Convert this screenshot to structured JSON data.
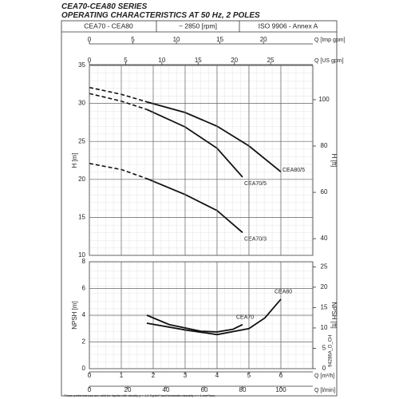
{
  "header": {
    "title_line1": "CEA70-CEA80  SERIES",
    "title_line2": "OPERATING CHARACTERISTICS AT 50 Hz, 2 POLES",
    "cells": [
      "CEA70 - CEA80",
      "~ 2850 [rpm]",
      "ISO 9906 - Annex A"
    ]
  },
  "chart_data": [
    {
      "type": "line",
      "xlim": [
        0,
        7
      ],
      "ylabel": "H [m]",
      "ylim": [
        10,
        35
      ],
      "yticks": [
        10,
        15,
        20,
        25,
        30,
        35
      ],
      "y2label": "H [ft]",
      "y2lim": [
        32.8,
        114.8
      ],
      "y2ticks": [
        40,
        60,
        80,
        100
      ],
      "grid": true,
      "top_axes": [
        {
          "label": "Q [Imp gpm]",
          "xlim": [
            0,
            25.67
          ],
          "xticks": [
            0,
            5,
            10,
            15,
            20
          ]
        },
        {
          "label": "Q [US gpm]",
          "xlim": [
            0,
            30.82
          ],
          "xticks": [
            0,
            5,
            10,
            15,
            20,
            25
          ]
        }
      ],
      "series": [
        {
          "name": "CEA80/5",
          "color": "#111111",
          "x": [
            1.8,
            3,
            4,
            5,
            6
          ],
          "values": [
            30.2,
            28.8,
            27,
            24.4,
            21
          ],
          "dashed_x": [
            0,
            1,
            1.8
          ],
          "dashed_values": [
            32.1,
            31.2,
            30.2
          ]
        },
        {
          "name": "CEA70/5",
          "color": "#111111",
          "x": [
            1.8,
            3,
            4,
            4.8
          ],
          "values": [
            29.2,
            26.9,
            24.1,
            20.3
          ],
          "dashed_x": [
            0,
            1,
            1.8
          ],
          "dashed_values": [
            31.3,
            30.3,
            29.2
          ]
        },
        {
          "name": "CEA70/3",
          "color": "#111111",
          "x": [
            1.8,
            3,
            4,
            4.8
          ],
          "values": [
            20.1,
            18,
            15.9,
            13
          ],
          "dashed_x": [
            0,
            1,
            1.8
          ],
          "dashed_values": [
            22.1,
            21.3,
            20.1
          ]
        }
      ]
    },
    {
      "type": "line",
      "xlim": [
        0,
        7
      ],
      "ylabel": "NPSH [m]",
      "ylim": [
        0,
        8
      ],
      "yticks": [
        0,
        2,
        4,
        6,
        8
      ],
      "y2label": "NPSH [ft]",
      "y2lim": [
        0,
        26.25
      ],
      "y2ticks": [
        0,
        5,
        10,
        15,
        20,
        25
      ],
      "grid": true,
      "bottom_axes": [
        {
          "label": "Q [m³/h]",
          "xlim": [
            0,
            7
          ],
          "xticks": [
            0,
            1,
            2,
            3,
            4,
            5,
            6
          ]
        },
        {
          "label": "Q [l/min]",
          "xlim": [
            0,
            116.67
          ],
          "xticks": [
            0,
            20,
            40,
            60,
            80,
            100
          ]
        }
      ],
      "series": [
        {
          "name": "CEA70",
          "color": "#111111",
          "x": [
            1.8,
            2.5,
            3.5,
            4,
            4.5,
            4.8
          ],
          "values": [
            4,
            3.3,
            2.8,
            2.75,
            2.95,
            3.3
          ]
        },
        {
          "name": "CEA80",
          "color": "#111111",
          "x": [
            1.8,
            3,
            4,
            5,
            5.5,
            6
          ],
          "values": [
            3.4,
            2.9,
            2.55,
            3,
            3.8,
            5.2
          ]
        }
      ]
    }
  ],
  "footnote": "These performances are valid for liquids with density ρ = 1.0 Kg/dm³ and kinematic viscosity ν = 1 mm²/sec.",
  "code": "94286A_D_CH"
}
